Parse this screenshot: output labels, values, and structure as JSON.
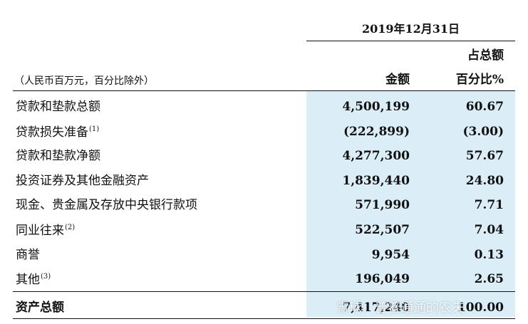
{
  "header": {
    "date": "2019年12月31日",
    "unit_note": "（人民币百万元，百分比除外）",
    "col_amount": "金额",
    "col_pct_line1": "占总额",
    "col_pct_line2": "百分比%"
  },
  "rows": [
    {
      "label": "贷款和垫款总额",
      "note": "",
      "amount": "4,500,199",
      "pct": "60.67"
    },
    {
      "label": "贷款损失准备",
      "note": "(1)",
      "amount": "(222,899)",
      "pct": "(3.00)"
    },
    {
      "label": "贷款和垫款净额",
      "note": "",
      "amount": "4,277,300",
      "pct": "57.67"
    },
    {
      "label": "投资证券及其他金融资产",
      "note": "",
      "amount": "1,839,440",
      "pct": "24.80"
    },
    {
      "label": "现金、贵金属及存放中央银行款项",
      "note": "",
      "amount": "571,990",
      "pct": "7.71"
    },
    {
      "label": "同业往来",
      "note": "(2)",
      "amount": "522,507",
      "pct": "7.04"
    },
    {
      "label": "商誉",
      "note": "",
      "amount": "9,954",
      "pct": "0.13"
    },
    {
      "label": "其他",
      "note": "(3)",
      "amount": "196,049",
      "pct": "2.65"
    }
  ],
  "total": {
    "label": "资产总额",
    "amount": "7,417,240",
    "pct": "100.00"
  },
  "watermark": "雪球：普普通通的农夫"
}
